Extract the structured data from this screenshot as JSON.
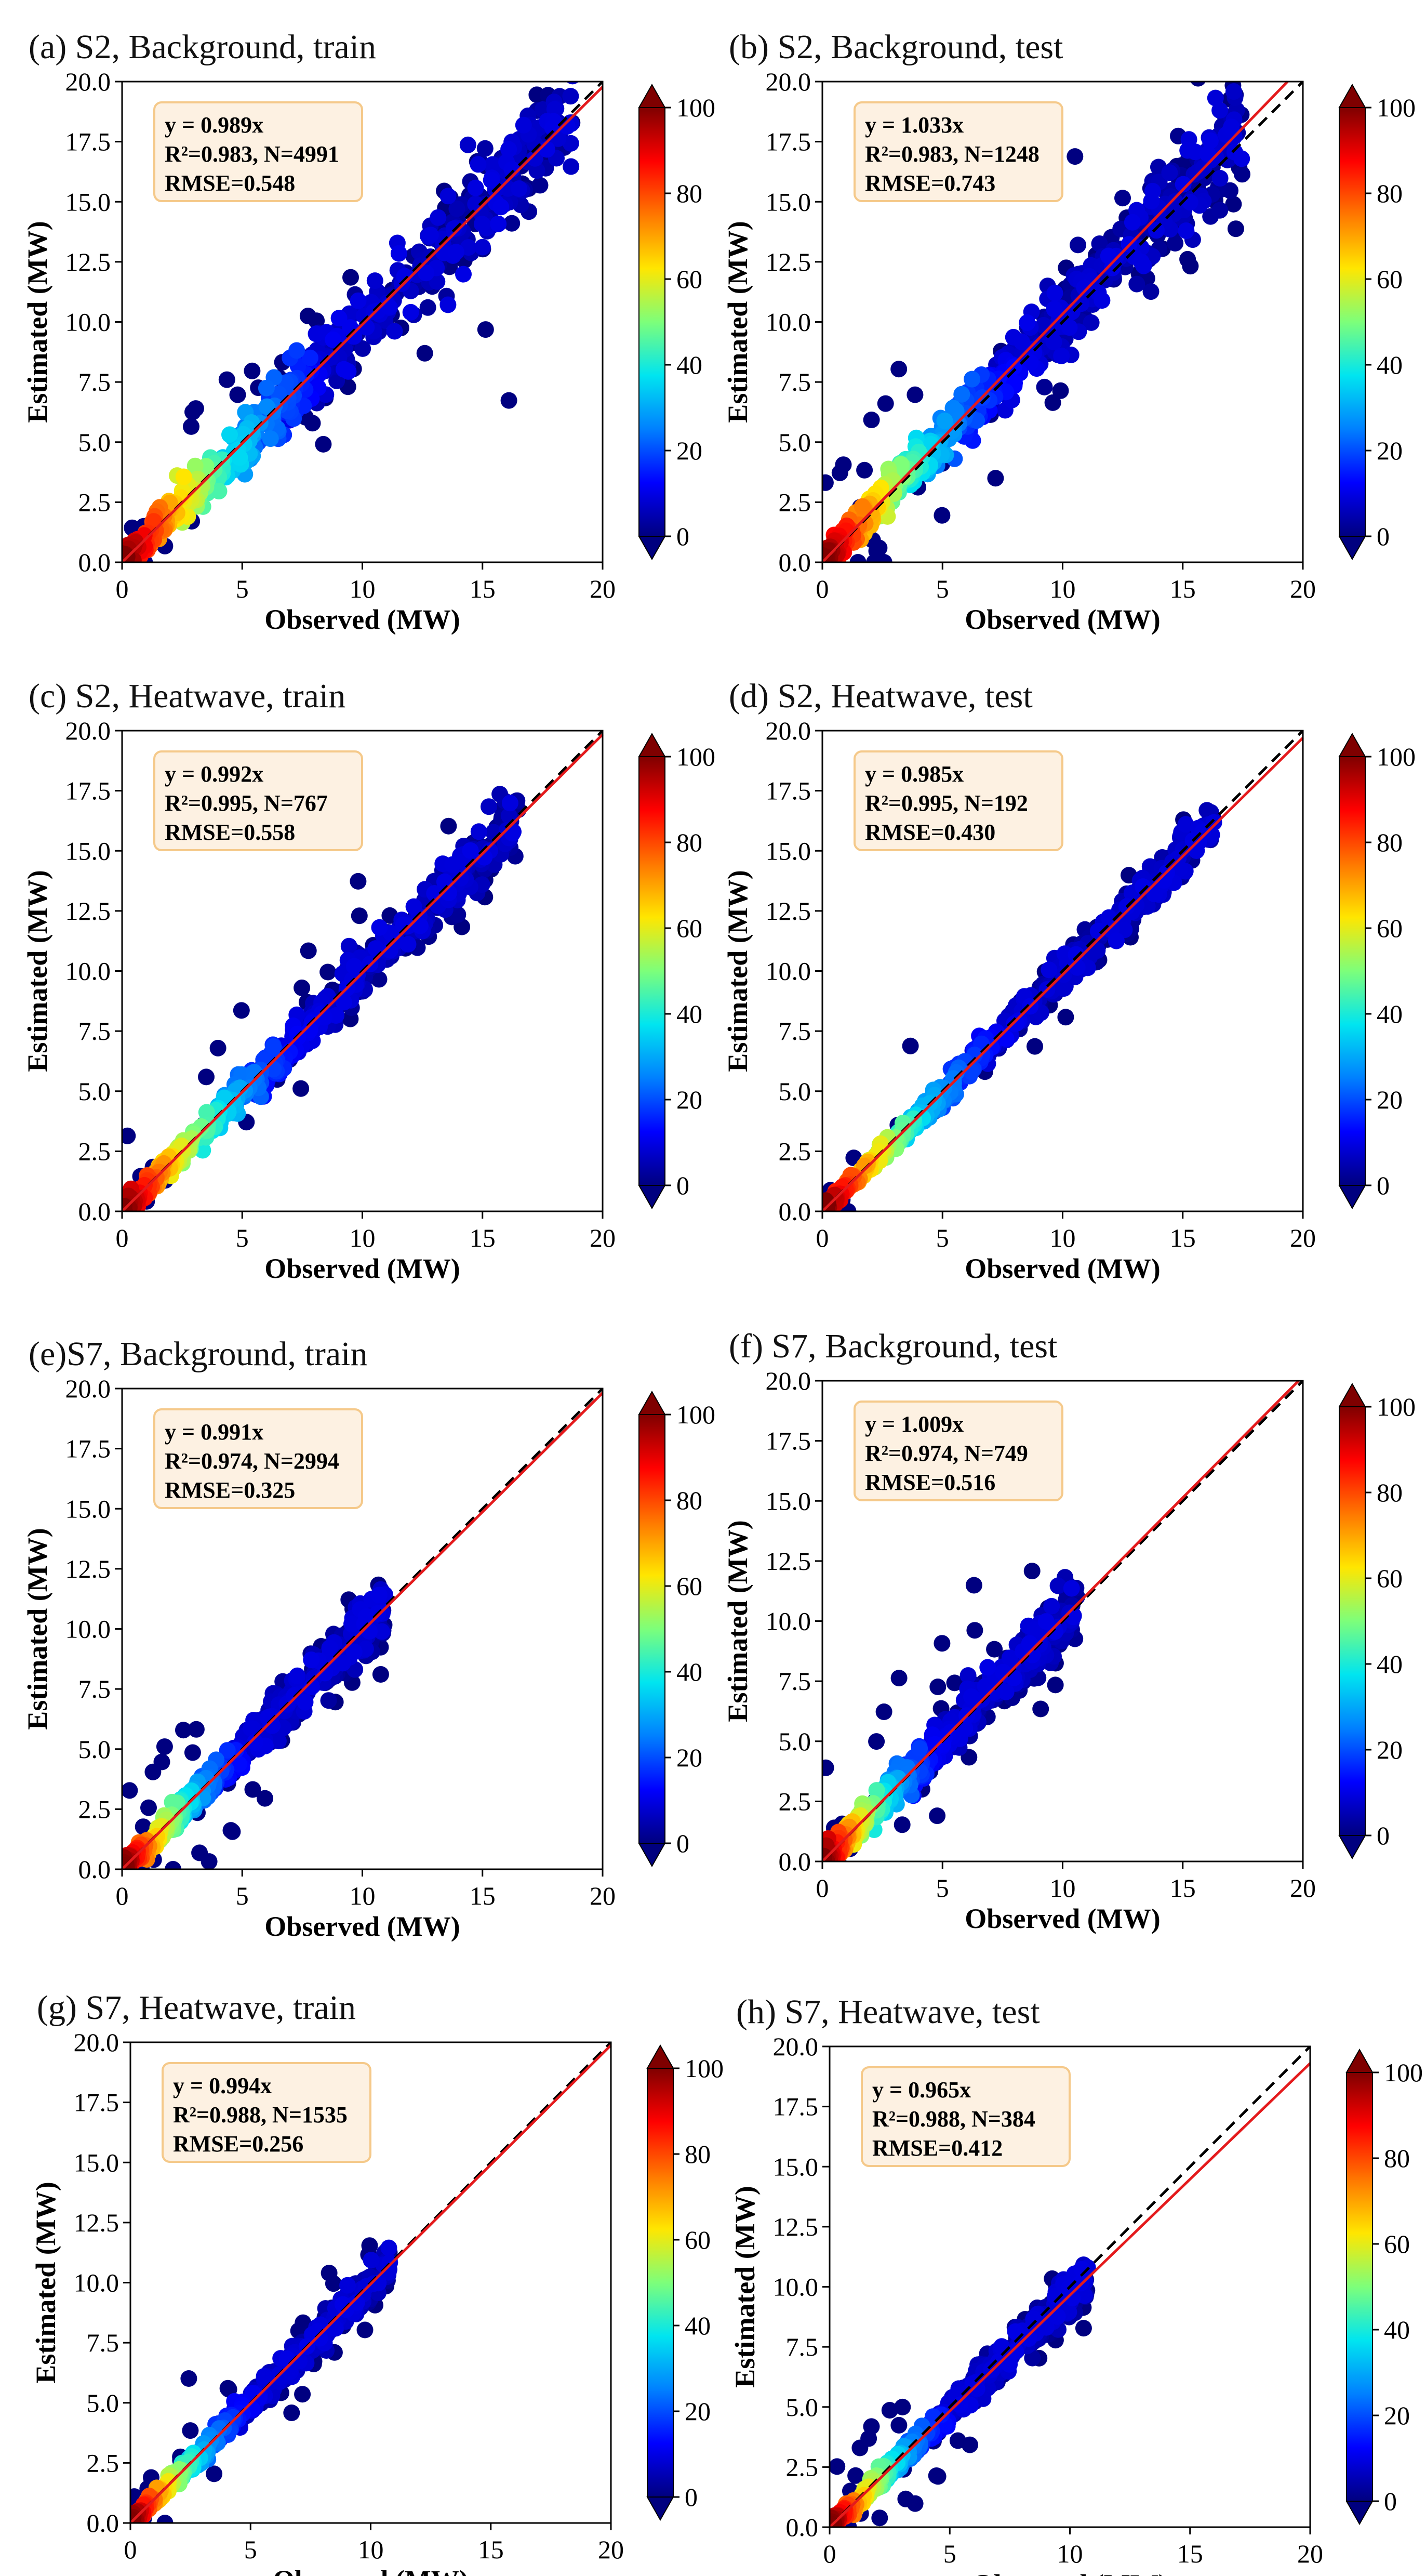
{
  "figure": {
    "x_label": "Observed (MW)",
    "y_label": "Estimated (MW)",
    "x_ticks": [
      "0",
      "5",
      "10",
      "15",
      "20"
    ],
    "y_ticks": [
      "0.0",
      "2.5",
      "5.0",
      "7.5",
      "10.0",
      "12.5",
      "15.0",
      "17.5",
      "20.0"
    ],
    "colorbar_ticks": [
      "0",
      "20",
      "40",
      "60",
      "80",
      "100"
    ],
    "colorbar_range": [
      0,
      100
    ]
  },
  "colors": {
    "fit_line": "#e41a1c",
    "identity_line": "#000000",
    "annotation_bg": "#fdf1e2",
    "annotation_border": "#f5c98a",
    "colormap": [
      "#00007f",
      "#0000ff",
      "#0080ff",
      "#00e5f0",
      "#7dff7a",
      "#ffe600",
      "#ff7700",
      "#ff0000",
      "#7f0000"
    ]
  },
  "chart_data": [
    {
      "type": "scatter",
      "title": "(a) S2, Background, train",
      "xlabel": "Observed (MW)",
      "ylabel": "Estimated (MW)",
      "xlim": [
        0,
        20
      ],
      "ylim": [
        0,
        20
      ],
      "fit_slope": 0.989,
      "annotation": [
        "y = 0.989x",
        "R²=0.983, N=4991",
        "RMSE=0.548"
      ],
      "series": [
        {
          "name": "density scatter",
          "x_max_observed": 18.8,
          "spread": 1.1,
          "outlier_rate": 0.06
        }
      ]
    },
    {
      "type": "scatter",
      "title": "(b) S2, Background, test",
      "xlabel": "Observed (MW)",
      "ylabel": "Estimated (MW)",
      "xlim": [
        0,
        20
      ],
      "ylim": [
        0,
        20
      ],
      "fit_slope": 1.033,
      "annotation": [
        "y = 1.033x",
        "R²=0.983, N=1248",
        "RMSE=0.743"
      ],
      "series": [
        {
          "name": "density scatter",
          "x_max_observed": 17.5,
          "spread": 1.1,
          "outlier_rate": 0.06
        }
      ]
    },
    {
      "type": "scatter",
      "title": "(c) S2, Heatwave, train",
      "xlabel": "Observed (MW)",
      "ylabel": "Estimated (MW)",
      "xlim": [
        0,
        20
      ],
      "ylim": [
        0,
        20
      ],
      "fit_slope": 0.992,
      "annotation": [
        "y = 0.992x",
        "R²=0.995, N=767",
        "RMSE=0.558"
      ],
      "series": [
        {
          "name": "density scatter",
          "x_max_observed": 16.5,
          "spread": 0.7,
          "outlier_rate": 0.05
        }
      ]
    },
    {
      "type": "scatter",
      "title": "(d) S2, Heatwave, test",
      "xlabel": "Observed (MW)",
      "ylabel": "Estimated (MW)",
      "xlim": [
        0,
        20
      ],
      "ylim": [
        0,
        20
      ],
      "fit_slope": 0.985,
      "annotation": [
        "y = 0.985x",
        "R²=0.995, N=192",
        "RMSE=0.430"
      ],
      "series": [
        {
          "name": "density scatter",
          "x_max_observed": 16.3,
          "spread": 0.5,
          "outlier_rate": 0.04
        }
      ]
    },
    {
      "type": "scatter",
      "title": "(e)S7, Background, train",
      "xlabel": "Observed (MW)",
      "ylabel": "Estimated (MW)",
      "xlim": [
        0,
        20
      ],
      "ylim": [
        0,
        20
      ],
      "fit_slope": 0.991,
      "annotation": [
        "y = 0.991x",
        "R²=0.974, N=2994",
        "RMSE=0.325"
      ],
      "series": [
        {
          "name": "density scatter",
          "x_max_observed": 11.0,
          "spread": 0.8,
          "outlier_rate": 0.05
        }
      ]
    },
    {
      "type": "scatter",
      "title": "(f) S7, Background, test",
      "xlabel": "Observed (MW)",
      "ylabel": "Estimated (MW)",
      "xlim": [
        0,
        20
      ],
      "ylim": [
        0,
        20
      ],
      "fit_slope": 1.009,
      "annotation": [
        "y = 1.009x",
        "R²=0.974, N=749",
        "RMSE=0.516"
      ],
      "series": [
        {
          "name": "density scatter",
          "x_max_observed": 10.6,
          "spread": 0.9,
          "outlier_rate": 0.05
        }
      ]
    },
    {
      "type": "scatter",
      "title": "(g) S7, Heatwave, train",
      "xlabel": "Observed (MW)",
      "ylabel": "Estimated (MW)",
      "xlim": [
        0,
        20
      ],
      "ylim": [
        0,
        20
      ],
      "fit_slope": 0.994,
      "annotation": [
        "y = 0.994x",
        "R²=0.988, N=1535",
        "RMSE=0.256"
      ],
      "series": [
        {
          "name": "density scatter",
          "x_max_observed": 10.8,
          "spread": 0.55,
          "outlier_rate": 0.05
        }
      ]
    },
    {
      "type": "scatter",
      "title": "(h) S7, Heatwave, test",
      "xlabel": "Observed (MW)",
      "ylabel": "Estimated (MW)",
      "xlim": [
        0,
        20
      ],
      "ylim": [
        0,
        20
      ],
      "fit_slope": 0.965,
      "annotation": [
        "y = 0.965x",
        "R²=0.988, N=384",
        "RMSE=0.412"
      ],
      "series": [
        {
          "name": "density scatter",
          "x_max_observed": 10.8,
          "spread": 0.6,
          "outlier_rate": 0.05
        }
      ]
    }
  ]
}
